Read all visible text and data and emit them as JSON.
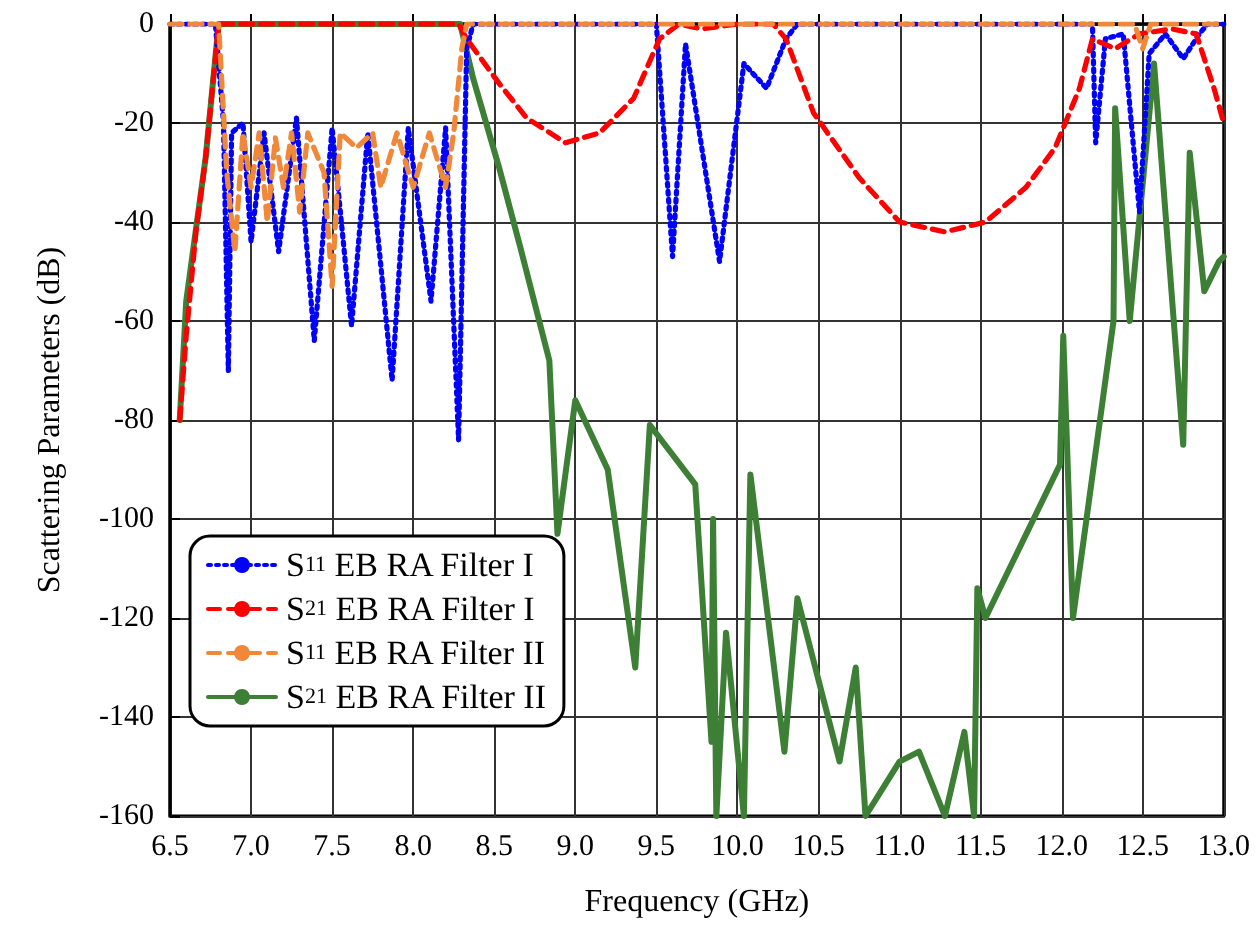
{
  "chart_data": {
    "type": "line",
    "xlabel": "Frequency (GHz)",
    "ylabel": "Scattering Parameters (dB)",
    "xlim": [
      6.5,
      13.0
    ],
    "xticks": [
      6.5,
      {
        "value": 7,
        "label": "7.0"
      },
      7.5,
      {
        "value": 8,
        "label": "8.0"
      },
      8.5,
      {
        "value": 9,
        "label": "9.0"
      },
      9.5,
      {
        "value": 10,
        "label": "10.0"
      },
      10.5,
      {
        "value": 11,
        "label": "11.0"
      },
      11.5,
      {
        "value": 12,
        "label": "12.0"
      },
      12.5,
      {
        "value": 13,
        "label": "13.0"
      }
    ],
    "ylim": [
      -160,
      0
    ],
    "yticks": [
      -160,
      -140,
      -120,
      -100,
      -80,
      -60,
      -40,
      -20,
      0
    ],
    "grid": true,
    "legend": "bottom left",
    "marker": "none",
    "series": [
      {
        "name": "S$_{11}$ EB RA Filter I",
        "color": "#0000ff",
        "line_style": "dotted",
        "x": [
          6.5,
          6.78,
          6.83,
          6.86,
          6.88,
          6.95,
          7.0,
          7.08,
          7.17,
          7.28,
          7.39,
          7.5,
          7.62,
          7.72,
          7.87,
          7.97,
          8.11,
          8.2,
          8.28,
          8.33,
          8.37,
          9.5,
          9.6,
          9.68,
          9.89,
          10.04,
          10.18,
          10.3,
          10.37,
          12.19,
          12.21,
          12.27,
          12.38,
          12.48,
          12.54,
          12.64,
          12.75,
          12.85,
          12.9,
          13.0
        ],
        "values": [
          0,
          0,
          -20,
          -70,
          -22,
          -20,
          -44,
          -22,
          -46,
          -19,
          -64,
          -21,
          -61,
          -22,
          -72,
          -21,
          -56,
          -21,
          -84,
          -5,
          0,
          0,
          -47,
          -4,
          -48,
          -8,
          -13,
          -3,
          0,
          0,
          -24,
          -3,
          -2,
          -38,
          -6,
          -2,
          -7,
          -2,
          0,
          0
        ]
      },
      {
        "name": "S$_{21}$ EB RA Filter I",
        "color": "#ff0000",
        "line_style": "dashed",
        "x": [
          6.56,
          6.6,
          6.66,
          6.72,
          6.8,
          8.28,
          8.33,
          8.53,
          8.7,
          8.94,
          9.15,
          9.36,
          9.52,
          9.64,
          9.78,
          10.0,
          10.22,
          10.3,
          10.47,
          10.75,
          11.0,
          11.28,
          11.53,
          11.78,
          11.96,
          12.11,
          12.19,
          12.33,
          12.48,
          12.68,
          12.83,
          12.94,
          13.0
        ],
        "values": [
          -80,
          -63,
          -42,
          -27,
          0,
          0,
          -3,
          -12,
          -19,
          -24,
          -22,
          -15,
          -3,
          0,
          -1,
          0,
          0,
          -3,
          -18,
          -31,
          -40,
          -42,
          -40,
          -33,
          -25,
          -13,
          -3,
          -5,
          -2,
          -1,
          -2,
          -13,
          -20
        ]
      },
      {
        "name": "S$_{11}$ EB RA Filter II",
        "color": "#f0883a",
        "line_style": "dashed",
        "x": [
          6.5,
          6.8,
          6.85,
          6.9,
          6.95,
          7.0,
          7.05,
          7.1,
          7.15,
          7.2,
          7.25,
          7.3,
          7.35,
          7.45,
          7.5,
          7.55,
          7.65,
          7.75,
          7.8,
          7.9,
          8.0,
          8.1,
          8.2,
          8.25,
          8.3,
          8.33,
          12.45,
          12.5,
          12.55,
          13.0
        ],
        "values": [
          0,
          0,
          -30,
          -46,
          -22,
          -33,
          -22,
          -40,
          -23,
          -33,
          -22,
          -38,
          -22,
          -30,
          -53,
          -22,
          -25,
          -22,
          -33,
          -22,
          -33,
          -22,
          -33,
          -22,
          -5,
          0,
          0,
          -5,
          0,
          0
        ]
      },
      {
        "name": "S$_{21}$ EB RA Filter II",
        "color": "#3d7f35",
        "line_style": "solid",
        "x": [
          6.56,
          6.6,
          6.72,
          6.8,
          8.29,
          8.37,
          8.53,
          8.66,
          8.84,
          8.89,
          9.0,
          9.2,
          9.37,
          9.46,
          9.74,
          9.84,
          9.85,
          9.87,
          9.93,
          10.04,
          10.08,
          10.29,
          10.37,
          10.63,
          10.73,
          10.79,
          11.0,
          11.12,
          11.28,
          11.4,
          11.46,
          11.48,
          11.53,
          11.99,
          12.01,
          12.07,
          12.32,
          12.33,
          12.42,
          12.57,
          12.75,
          12.79,
          12.88,
          12.97,
          13.0
        ],
        "values": [
          -80,
          -56,
          -27,
          0,
          0,
          -11,
          -29,
          -45,
          -68,
          -103,
          -76,
          -90,
          -130,
          -81,
          -93,
          -145,
          -100,
          -160,
          -123,
          -160,
          -91,
          -147,
          -116,
          -149,
          -130,
          -160,
          -149,
          -147,
          -160,
          -143,
          -160,
          -114,
          -120,
          -89,
          -63,
          -120,
          -60,
          -17,
          -60,
          -8,
          -85,
          -26,
          -54,
          -48,
          -47
        ]
      }
    ]
  }
}
